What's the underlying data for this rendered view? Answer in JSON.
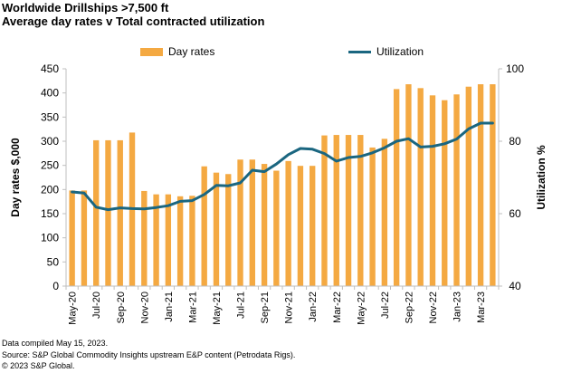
{
  "header": {
    "title": "Worldwide Drillships >7,500 ft",
    "subtitle": "Average day rates v Total contracted utilization"
  },
  "notes": [
    "Data compiled May 15, 2023.",
    "Source: S&P Global Commodity Insights upstream E&P content (Petrodata Rigs).",
    "© 2023 S&P Global."
  ],
  "colors": {
    "bar": "#F4A942",
    "line": "#1A6680",
    "axis": "#BFBFBF"
  },
  "chart_data": {
    "type": "bar",
    "xlabel": "",
    "ylabel": "Day rates $,000",
    "y2label": "Utilization %",
    "ylim": [
      0,
      450
    ],
    "yticks": [
      0,
      50,
      100,
      150,
      200,
      250,
      300,
      350,
      400,
      450
    ],
    "y2lim": [
      40,
      100
    ],
    "y2ticks": [
      40,
      60,
      80,
      100
    ],
    "legend_position": "top",
    "x_tick_labels": [
      "May-20",
      "Jul-20",
      "Sep-20",
      "Nov-20",
      "Jan-21",
      "Mar-21",
      "May-21",
      "Jul-21",
      "Sep-21",
      "Nov-21",
      "Jan-22",
      "Mar-22",
      "May-22",
      "Jul-22",
      "Sep-22",
      "Nov-22",
      "Jan-23",
      "Mar-23"
    ],
    "categories": [
      "May-20",
      "Jun-20",
      "Jul-20",
      "Aug-20",
      "Sep-20",
      "Oct-20",
      "Nov-20",
      "Dec-20",
      "Jan-21",
      "Feb-21",
      "Mar-21",
      "Apr-21",
      "May-21",
      "Jun-21",
      "Jul-21",
      "Aug-21",
      "Sep-21",
      "Oct-21",
      "Nov-21",
      "Dec-21",
      "Jan-22",
      "Feb-22",
      "Mar-22",
      "Apr-22",
      "May-22",
      "Jun-22",
      "Jul-22",
      "Aug-22",
      "Sep-22",
      "Oct-22",
      "Nov-22",
      "Dec-22",
      "Jan-23",
      "Feb-23",
      "Mar-23",
      "Apr-23"
    ],
    "series": [
      {
        "name": "Day rates",
        "kind": "bar",
        "axis": "left",
        "values": [
          198,
          198,
          302,
          302,
          302,
          318,
          197,
          190,
          190,
          186,
          187,
          248,
          235,
          232,
          262,
          262,
          253,
          239,
          259,
          249,
          249,
          312,
          313,
          313,
          313,
          287,
          305,
          408,
          418,
          410,
          395,
          385,
          397,
          413,
          418,
          418
        ]
      },
      {
        "name": "Utilization",
        "kind": "line",
        "axis": "right",
        "values": [
          66.0,
          65.7,
          61.8,
          61.1,
          61.6,
          61.4,
          61.3,
          61.7,
          62.2,
          63.4,
          63.6,
          65.3,
          67.8,
          67.7,
          68.5,
          72.0,
          71.6,
          73.7,
          76.3,
          78.0,
          77.8,
          76.6,
          74.5,
          75.5,
          75.8,
          76.8,
          78.2,
          80.0,
          80.7,
          78.4,
          78.6,
          79.3,
          80.6,
          83.4,
          85.0,
          85.0
        ]
      }
    ]
  }
}
